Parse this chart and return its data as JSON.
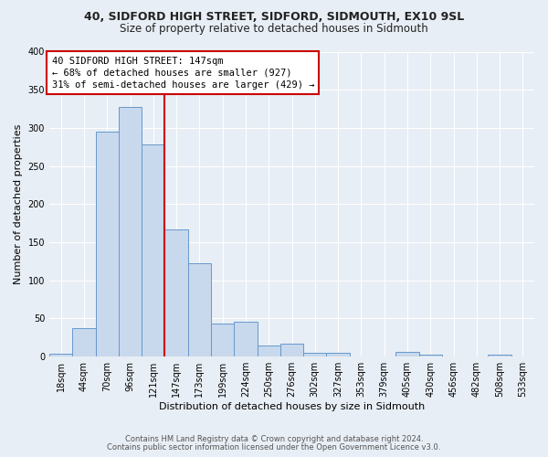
{
  "title1": "40, SIDFORD HIGH STREET, SIDFORD, SIDMOUTH, EX10 9SL",
  "title2": "Size of property relative to detached houses in Sidmouth",
  "xlabel": "Distribution of detached houses by size in Sidmouth",
  "ylabel": "Number of detached properties",
  "bar_labels": [
    "18sqm",
    "44sqm",
    "70sqm",
    "96sqm",
    "121sqm",
    "147sqm",
    "173sqm",
    "199sqm",
    "224sqm",
    "250sqm",
    "276sqm",
    "302sqm",
    "327sqm",
    "353sqm",
    "379sqm",
    "405sqm",
    "430sqm",
    "456sqm",
    "482sqm",
    "508sqm",
    "533sqm"
  ],
  "bar_values": [
    4,
    38,
    295,
    328,
    278,
    167,
    123,
    43,
    46,
    15,
    17,
    5,
    5,
    0,
    0,
    6,
    3,
    0,
    0,
    3,
    0
  ],
  "bar_color": "#c8d8ed",
  "bar_edge_color": "#6699cc",
  "vline_x_index": 5,
  "vline_color": "#cc0000",
  "annotation_line1": "40 SIDFORD HIGH STREET: 147sqm",
  "annotation_line2": "← 68% of detached houses are smaller (927)",
  "annotation_line3": "31% of semi-detached houses are larger (429) →",
  "annotation_box_color": "#cc0000",
  "annotation_bg": "#ffffff",
  "ylim": [
    0,
    400
  ],
  "yticks": [
    0,
    50,
    100,
    150,
    200,
    250,
    300,
    350,
    400
  ],
  "footer1": "Contains HM Land Registry data © Crown copyright and database right 2024.",
  "footer2": "Contains public sector information licensed under the Open Government Licence v3.0.",
  "bg_color": "#e8eef5",
  "plot_bg_color": "#e8eef5",
  "grid_color": "#ffffff",
  "title1_fontsize": 9,
  "title2_fontsize": 8.5,
  "ylabel_fontsize": 8,
  "xlabel_fontsize": 8,
  "tick_fontsize": 7,
  "footer_fontsize": 6,
  "annot_fontsize": 7.5
}
